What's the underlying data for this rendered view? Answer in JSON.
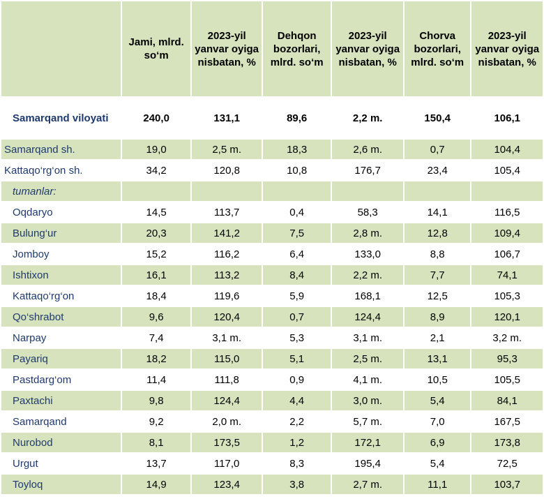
{
  "headers": [
    "",
    "Jami, mlrd. so‘m",
    "2023-yil yanvar oyiga nisbatan, %",
    "Dehqon bozorlari, mlrd. so‘m",
    "2023-yil yanvar oyiga nisbatan, %",
    "Chorva bozorlari, mlrd. so‘m",
    "2023-yil yanvar oyiga nisbatan, %"
  ],
  "total": {
    "name": "Samarqand viloyati",
    "values": [
      "240,0",
      "131,1",
      "89,6",
      "2,2 m.",
      "150,4",
      "106,1"
    ]
  },
  "cities": [
    {
      "name": "Samarqand sh.",
      "values": [
        "19,0",
        "2,5 m.",
        "18,3",
        "2,6 m.",
        "0,7",
        "104,4"
      ]
    },
    {
      "name": "Kattaqo‘rg‘on sh.",
      "values": [
        "34,2",
        "120,8",
        "10,8",
        "176,7",
        "23,4",
        "105,4"
      ]
    }
  ],
  "districts_label": "tumanlar:",
  "districts": [
    {
      "name": "Oqdaryo",
      "values": [
        "14,5",
        "113,7",
        "0,4",
        "58,3",
        "14,1",
        "116,5"
      ]
    },
    {
      "name": "Bulung‘ur",
      "values": [
        "20,3",
        "141,2",
        "7,5",
        "2,8 m.",
        "12,8",
        "109,4"
      ]
    },
    {
      "name": "Jomboy",
      "values": [
        "15,2",
        "116,2",
        "6,4",
        "133,0",
        "8,8",
        "106,7"
      ]
    },
    {
      "name": "Ishtixon",
      "values": [
        "16,1",
        "113,2",
        "8,4",
        "2,2 m.",
        "7,7",
        "74,1"
      ]
    },
    {
      "name": "Kattaqo‘rg‘on",
      "values": [
        "18,4",
        "119,6",
        "5,9",
        "168,1",
        "12,5",
        "105,3"
      ]
    },
    {
      "name": "Qo‘shrabot",
      "values": [
        "9,6",
        "120,4",
        "0,7",
        "124,4",
        "8,9",
        "120,1"
      ]
    },
    {
      "name": "Narpay",
      "values": [
        "7,4",
        "3,1 m.",
        "5,3",
        "3,1 m.",
        "2,1",
        "3,2 m."
      ]
    },
    {
      "name": "Payariq",
      "values": [
        "18,2",
        "115,0",
        "5,1",
        "2,5 m.",
        "13,1",
        "95,3"
      ]
    },
    {
      "name": "Pastdarg‘om",
      "values": [
        "11,4",
        "111,8",
        "0,9",
        "4,1 m.",
        "10,5",
        "105,5"
      ]
    },
    {
      "name": "Paxtachi",
      "values": [
        "9,8",
        "124,4",
        "4,4",
        "3,0 m.",
        "5,4",
        "84,1"
      ]
    },
    {
      "name": "Samarqand",
      "values": [
        "9,2",
        "2,0 m.",
        "2,2",
        "5,7 m.",
        "7,0",
        "167,5"
      ]
    },
    {
      "name": "Nurobod",
      "values": [
        "8,1",
        "173,5",
        "1,2",
        "172,1",
        "6,9",
        "173,8"
      ]
    },
    {
      "name": "Urgut",
      "values": [
        "13,7",
        "117,0",
        "8,3",
        "195,4",
        "5,4",
        "72,5"
      ]
    },
    {
      "name": "Toyloq",
      "values": [
        "14,9",
        "123,4",
        "3,8",
        "2,7 m.",
        "11,1",
        "103,7"
      ]
    }
  ]
}
